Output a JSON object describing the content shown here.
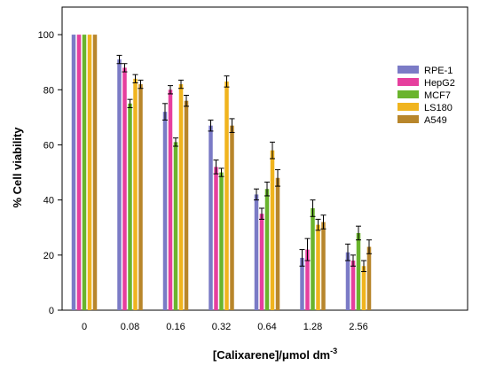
{
  "chart_data": {
    "type": "bar",
    "title": "",
    "xlabel": "[Calixarene]/μmol dm",
    "xlabel_superscript": "-3",
    "ylabel": "% Cell viability",
    "ylim": [
      0,
      110
    ],
    "yticks": [
      0,
      20,
      40,
      60,
      80,
      100
    ],
    "categories": [
      "0",
      "0.08",
      "0.16",
      "0.32",
      "0.64",
      "1.28",
      "2.56"
    ],
    "legend_position": "top-right",
    "grid": false,
    "series": [
      {
        "name": "RPE-1",
        "color": "#7b7bc6",
        "values": [
          100,
          91,
          72,
          67,
          42,
          19,
          21
        ],
        "errors": [
          0,
          1.5,
          3,
          2,
          2,
          3,
          3
        ]
      },
      {
        "name": "HepG2",
        "color": "#e63f9e",
        "values": [
          100,
          88,
          80,
          52,
          35,
          22,
          18
        ],
        "errors": [
          0,
          1.5,
          1.5,
          2.5,
          2,
          4,
          2
        ]
      },
      {
        "name": "MCF7",
        "color": "#6ab42d",
        "values": [
          100,
          75,
          61,
          50,
          44,
          37,
          28
        ],
        "errors": [
          0,
          1.5,
          1.5,
          1.5,
          2.5,
          3,
          2.5
        ]
      },
      {
        "name": "LS180",
        "color": "#f0b41e",
        "values": [
          100,
          84,
          82,
          83,
          58,
          31,
          16
        ],
        "errors": [
          0,
          1.5,
          1.5,
          2,
          3,
          2,
          2
        ]
      },
      {
        "name": "A549",
        "color": "#b8862b",
        "values": [
          100,
          82,
          76,
          67,
          48,
          32,
          23
        ],
        "errors": [
          0,
          1.5,
          2,
          2.5,
          3,
          2.5,
          2.5
        ]
      }
    ]
  }
}
